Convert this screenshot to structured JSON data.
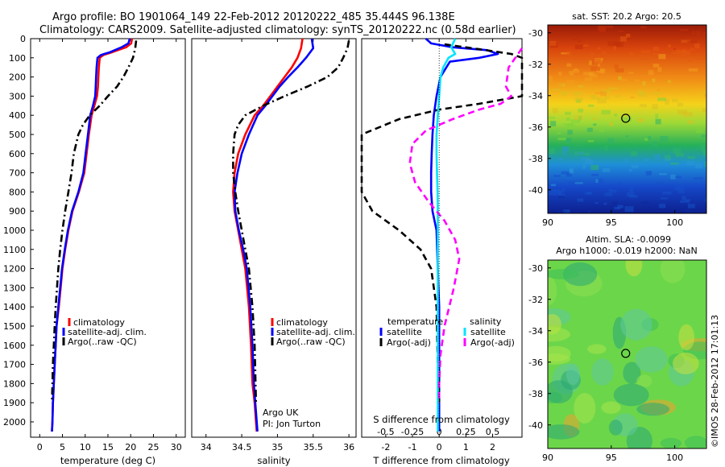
{
  "header": {
    "line1": "Argo profile: BO 1901064_149 22-Feb-2012 20120222_485 35.444S 96.138E",
    "line2": "Climatology: CARS2009. Satellite-adjusted climatology: synTS_20120222.nc (0.58d earlier)"
  },
  "colors": {
    "climatology": "#ff0000",
    "satellite_adj_clim": "#0000ff",
    "argo": "#000000",
    "satellite_salinity": "#00e5ff",
    "argo_salinity": "#ff00ff"
  },
  "footer": {
    "credit": "©IMOS 28-Feb-2012 17:01:13"
  },
  "chart_data": [
    {
      "id": "temperature",
      "type": "line",
      "xlabel": "temperature (deg C)",
      "ylabel": "",
      "xlim": [
        -2,
        32
      ],
      "ylim": [
        2080,
        0
      ],
      "x_ticks": [
        "0",
        "5",
        "10",
        "15",
        "20",
        "25",
        "30"
      ],
      "y_ticks": [
        "0",
        "100",
        "200",
        "300",
        "400",
        "500",
        "600",
        "700",
        "800",
        "900",
        "1000",
        "1100",
        "1200",
        "1300",
        "1400",
        "1500",
        "1600",
        "1700",
        "1800",
        "1900",
        "2000"
      ],
      "legend": {
        "placement": "lower-right",
        "entries": [
          "climatology",
          "satellite-adj. clim.",
          "Argo(..raw -QC)"
        ]
      },
      "series": [
        {
          "name": "climatology",
          "color": "#ff0000",
          "style": "solid",
          "x": [
            20.3,
            20.1,
            19,
            16,
            14,
            13.2,
            13,
            12.9,
            12.8,
            12.6,
            12,
            11.4,
            10.8,
            10.3,
            9.8,
            8.6,
            7.2,
            6.3,
            5.6,
            5.0,
            4.6,
            4.2,
            3.7,
            3.5,
            3.3,
            3.1,
            2.9,
            2.8,
            2.7
          ],
          "y": [
            0,
            25,
            45,
            70,
            85,
            100,
            150,
            200,
            250,
            300,
            350,
            400,
            500,
            600,
            700,
            800,
            900,
            1000,
            1100,
            1200,
            1300,
            1400,
            1500,
            1600,
            1700,
            1800,
            1900,
            2000,
            2050
          ]
        },
        {
          "name": "satellite-adj. clim.",
          "color": "#0000ff",
          "style": "solid",
          "x": [
            19.8,
            19.5,
            18,
            15.5,
            13.5,
            12.7,
            12.5,
            12.4,
            12.3,
            12.2,
            11.7,
            11.1,
            10.6,
            10.1,
            9.6,
            8.5,
            7.1,
            6.2,
            5.5,
            4.9,
            4.5,
            4.1,
            3.7,
            3.5,
            3.3,
            3.1,
            2.9,
            2.8,
            2.7
          ],
          "y": [
            0,
            25,
            45,
            70,
            85,
            100,
            150,
            200,
            250,
            300,
            350,
            400,
            500,
            600,
            700,
            800,
            900,
            1000,
            1100,
            1200,
            1300,
            1400,
            1500,
            1600,
            1700,
            1800,
            1900,
            2000,
            2050
          ]
        },
        {
          "name": "Argo(..raw -QC)",
          "color": "#000000",
          "style": "dashdot",
          "x": [
            21.2,
            21.0,
            20.5,
            19.5,
            18.4,
            17.0,
            15.0,
            13.2,
            11.0,
            9.5,
            8.5,
            8.0,
            7.5,
            7.0,
            6.3,
            5.6,
            5.0,
            4.5,
            4.1,
            3.8,
            3.5,
            3.3,
            3.1,
            2.9,
            2.8,
            2.7
          ],
          "y": [
            10,
            50,
            100,
            150,
            200,
            250,
            300,
            350,
            400,
            450,
            500,
            550,
            600,
            700,
            800,
            900,
            1000,
            1100,
            1200,
            1300,
            1400,
            1500,
            1600,
            1700,
            1800,
            1900
          ]
        }
      ]
    },
    {
      "id": "salinity",
      "type": "line",
      "xlabel": "salinity",
      "ylabel": "",
      "xlim": [
        33.8,
        36.1
      ],
      "ylim": [
        2080,
        0
      ],
      "x_ticks": [
        "34",
        "34.5",
        "35",
        "35.5",
        "36"
      ],
      "legend": {
        "placement": "lower-right",
        "entries": [
          "climatology",
          "satellite-adj. clim.",
          "Argo(..raw -QC)"
        ]
      },
      "annotation": {
        "line1": "Argo UK",
        "line2": "PI: Jon Turton"
      },
      "series": [
        {
          "name": "climatology",
          "color": "#ff0000",
          "style": "solid",
          "x": [
            35.35,
            35.33,
            35.28,
            35.2,
            35.1,
            35.0,
            34.9,
            34.8,
            34.68,
            34.55,
            34.45,
            34.4,
            34.38,
            34.4,
            34.45,
            34.5,
            34.55,
            34.6,
            34.63,
            34.65,
            34.68,
            34.7,
            34.71
          ],
          "y": [
            0,
            50,
            100,
            150,
            200,
            250,
            300,
            350,
            400,
            500,
            600,
            700,
            800,
            900,
            1000,
            1100,
            1200,
            1400,
            1600,
            1800,
            1900,
            2000,
            2050
          ]
        },
        {
          "name": "satellite-adj. clim.",
          "color": "#0000ff",
          "style": "solid",
          "x": [
            35.48,
            35.5,
            35.4,
            35.28,
            35.15,
            35.03,
            34.93,
            34.83,
            34.72,
            34.6,
            34.5,
            34.44,
            34.4,
            34.41,
            34.46,
            34.52,
            34.57,
            34.62,
            34.65,
            34.67,
            34.69,
            34.71,
            34.72
          ],
          "y": [
            0,
            50,
            100,
            150,
            200,
            250,
            300,
            350,
            400,
            500,
            600,
            700,
            800,
            900,
            1000,
            1100,
            1200,
            1400,
            1600,
            1800,
            1900,
            2000,
            2050
          ]
        },
        {
          "name": "Argo(..raw -QC)",
          "color": "#000000",
          "style": "dashdot",
          "x": [
            36.0,
            35.98,
            35.92,
            35.85,
            35.7,
            35.42,
            35.1,
            34.8,
            34.55,
            34.45,
            34.4,
            34.38,
            34.38,
            34.41,
            34.45,
            34.5,
            34.55,
            34.6,
            34.65,
            34.68,
            34.7
          ],
          "y": [
            10,
            50,
            100,
            150,
            200,
            250,
            300,
            350,
            400,
            450,
            500,
            600,
            700,
            800,
            900,
            1000,
            1100,
            1200,
            1400,
            1600,
            1900
          ]
        }
      ]
    },
    {
      "id": "difference",
      "type": "line",
      "xlabel": "T difference from climatology",
      "xlabel_top": "S difference from climatology",
      "xlim": [
        -2.9,
        3.1
      ],
      "ylim": [
        2080,
        0
      ],
      "x_ticks": [
        "-2",
        "-1",
        "0",
        "1",
        "2"
      ],
      "x_ticks_top": [
        "-0.5",
        "-0.25",
        "0",
        "0.25",
        "0.5"
      ],
      "legend": {
        "placement": "lower",
        "group_titles": [
          "temperature",
          "salinity"
        ],
        "entries": [
          "satellite",
          "Argo(-adj)",
          "satellite",
          "Argo(-adj)"
        ]
      },
      "series": [
        {
          "name": "temperature satellite",
          "color": "#0000ff",
          "style": "solid",
          "x": [
            -0.5,
            -0.3,
            0.5,
            1.8,
            2.2,
            1.5,
            0.4,
            0.05,
            -0.1,
            -0.2,
            -0.25,
            -0.28,
            -0.3,
            -0.3,
            -0.25,
            -0.1,
            -0.05,
            0.0,
            0.0,
            0.0,
            0.0,
            0.0
          ],
          "y": [
            0,
            25,
            45,
            60,
            80,
            100,
            120,
            200,
            300,
            400,
            500,
            600,
            700,
            800,
            900,
            1000,
            1200,
            1400,
            1600,
            1800,
            2000,
            2050
          ]
        },
        {
          "name": "temperature Argo(-adj)",
          "color": "#000000",
          "style": "dashed",
          "x": [
            0.2,
            1.5,
            2.7,
            3.1,
            3.1,
            1.5,
            0.0,
            -1.5,
            -2.9,
            -2.9,
            -2.5,
            -1.5,
            -0.7,
            -0.3,
            -0.1,
            -0.05,
            0.0
          ],
          "y": [
            30,
            55,
            80,
            100,
            300,
            340,
            370,
            420,
            500,
            800,
            900,
            1000,
            1100,
            1200,
            1400,
            1700,
            1900
          ]
        },
        {
          "name": "salinity satellite",
          "color": "#00e5ff",
          "style": "solid",
          "x": [
            0.6,
            0.45,
            0.6,
            0.35,
            0.15,
            0.05,
            0.0,
            -0.05,
            -0.1,
            -0.1,
            -0.08,
            -0.06,
            -0.05,
            -0.05,
            -0.05,
            -0.05,
            -0.05,
            -0.05,
            -0.05
          ],
          "y": [
            0,
            45,
            80,
            100,
            150,
            200,
            300,
            400,
            500,
            600,
            700,
            800,
            900,
            1000,
            1200,
            1400,
            1600,
            1800,
            2050
          ]
        },
        {
          "name": "salinity Argo(-adj)",
          "color": "#ff00ff",
          "style": "dashed",
          "x": [
            3.1,
            2.6,
            2.5,
            2.7,
            2.3,
            1.5,
            0.5,
            -0.5,
            -1.0,
            -1.1,
            -0.9,
            -0.4,
            0.2,
            0.6,
            0.75,
            0.55,
            0.2,
            0.05,
            0.0,
            0.0
          ],
          "y": [
            50,
            150,
            250,
            300,
            340,
            370,
            420,
            480,
            550,
            650,
            750,
            850,
            950,
            1050,
            1150,
            1300,
            1500,
            1650,
            1800,
            1900
          ]
        }
      ]
    },
    {
      "id": "sst_map",
      "type": "heatmap",
      "title": "sat. SST: 20.2  Argo: 20.5",
      "x_ticks": [
        "90",
        "95",
        "100"
      ],
      "y_ticks": [
        "-30",
        "-32",
        "-34",
        "-36",
        "-38",
        "-40"
      ],
      "xlim": [
        90,
        102.5
      ],
      "ylim": [
        -41.5,
        -29.5
      ],
      "marker": {
        "lon": 96.138,
        "lat": -35.444
      }
    },
    {
      "id": "sla_map",
      "type": "heatmap",
      "title_line1": "Altim. SLA: -0.0099",
      "title_line2": "Argo h1000: -0.019 h2000: NaN",
      "x_ticks": [
        "90",
        "95",
        "100"
      ],
      "y_ticks": [
        "-30",
        "-32",
        "-34",
        "-36",
        "-38",
        "-40"
      ],
      "xlim": [
        90,
        102.5
      ],
      "ylim": [
        -41.5,
        -29.5
      ],
      "marker": {
        "lon": 96.138,
        "lat": -35.444
      }
    }
  ]
}
